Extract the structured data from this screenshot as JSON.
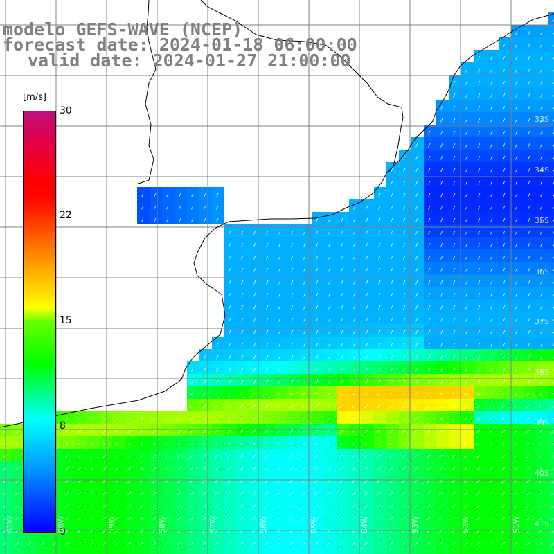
{
  "title": {
    "line1": "modelo GEFS-WAVE (NCEP)",
    "line2": "forecast date: 2024-01-18 06:00:00",
    "line3": "valid date: 2024-01-27 21:00:00"
  },
  "colorbar": {
    "units": "[m/s]",
    "ticks": [
      "30",
      "22",
      "15",
      "8",
      "0"
    ],
    "tick_values": [
      30,
      22,
      15,
      8,
      0
    ],
    "range": [
      0,
      30
    ],
    "colors": [
      "#0000ff",
      "#00aaff",
      "#00ffff",
      "#00ff00",
      "#ffff00",
      "#ff8000",
      "#ff0000",
      "#c0107a"
    ]
  },
  "map": {
    "land_color": "#ffffff",
    "coast_color": "#000000",
    "grid_color": "#808080",
    "lat_labels": [
      "33S",
      "34S",
      "35S",
      "36S",
      "37S",
      "38S",
      "39S",
      "40S",
      "41S"
    ],
    "lon_labels": [
      "61W",
      "60W",
      "59W",
      "58W",
      "57W",
      "56W",
      "55W",
      "54W",
      "53W",
      "52W",
      "51W"
    ],
    "field_description": "wind speed and direction over ocean"
  }
}
